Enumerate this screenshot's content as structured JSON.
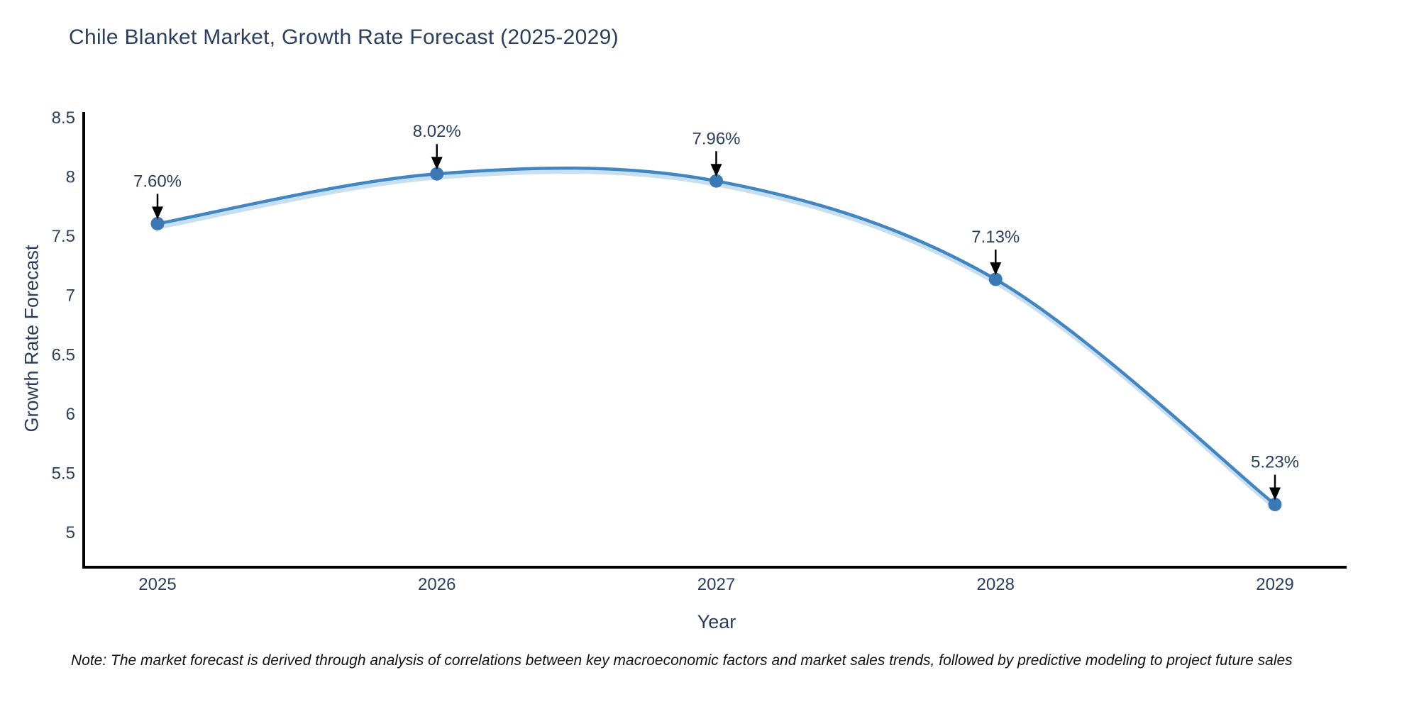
{
  "title": "Chile Blanket Market, Growth Rate Forecast (2025-2029)",
  "note": "Note: The market forecast is derived through analysis of correlations between key macroeconomic factors and market sales trends, followed by predictive modeling to project future sales",
  "chart_data": {
    "type": "line",
    "line_shape": "spline",
    "x": [
      2025,
      2026,
      2027,
      2028,
      2029
    ],
    "series": [
      {
        "name": "Growth Rate Forecast",
        "values": [
          7.6,
          8.02,
          7.96,
          7.13,
          5.23
        ]
      }
    ],
    "point_labels": [
      "7.60%",
      "8.02%",
      "7.96%",
      "7.13%",
      "5.23%"
    ],
    "title": "Chile Blanket Market, Growth Rate Forecast (2025-2029)",
    "xlabel": "Year",
    "ylabel": "Growth Rate Forecast",
    "yticks": [
      8.5,
      8,
      7.5,
      7,
      6.5,
      6,
      5.5,
      5
    ],
    "ylim": [
      4.7,
      8.55
    ],
    "grid": false,
    "legend": "none",
    "colors": {
      "line": "#4286c1",
      "line_glow": "#bdd9f0",
      "marker": "#3b79b5",
      "arrow": "#000000",
      "axis_line": "#000000",
      "text": "#2a3f5f",
      "note_text": "#111111",
      "background": "#ffffff"
    }
  }
}
